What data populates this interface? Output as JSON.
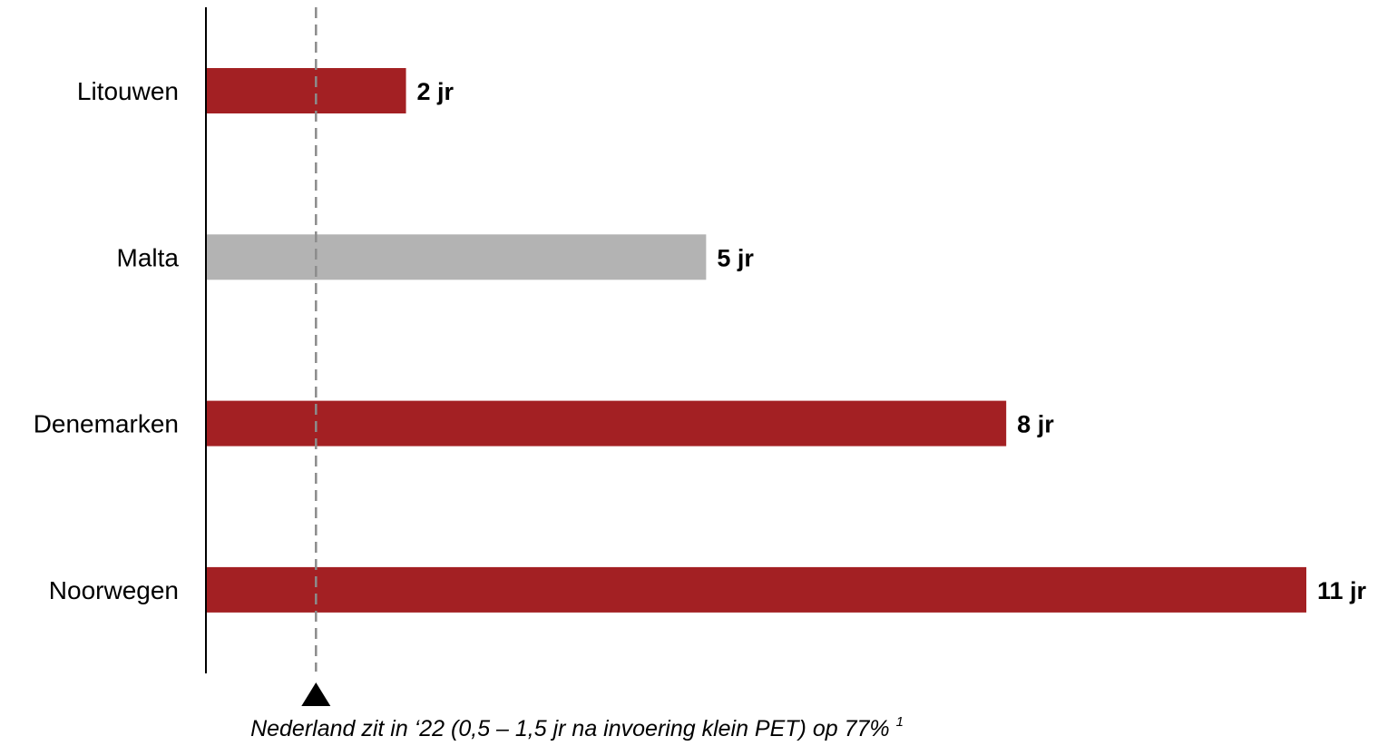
{
  "chart_data": {
    "type": "bar",
    "orientation": "horizontal",
    "categories": [
      "Litouwen",
      "Malta",
      "Denemarken",
      "Noorwegen"
    ],
    "values": [
      2,
      5,
      8,
      11
    ],
    "value_labels": [
      "2 jr",
      "5 jr",
      "8 jr",
      "11 jr"
    ],
    "bar_colors": [
      "#A32023",
      "#B3B3B3",
      "#A32023",
      "#A32023"
    ],
    "xlim": [
      0,
      11
    ],
    "title": "",
    "xlabel": "",
    "ylabel": "",
    "grid": false,
    "reference_line": {
      "value": 1.1,
      "style": "dashed",
      "color": "#8C8C8C"
    },
    "annotation": {
      "text": "Nederland zit in ‘22 (0,5 – 1,5 jr na invoering klein PET) op 77%",
      "superscript": "1"
    }
  }
}
